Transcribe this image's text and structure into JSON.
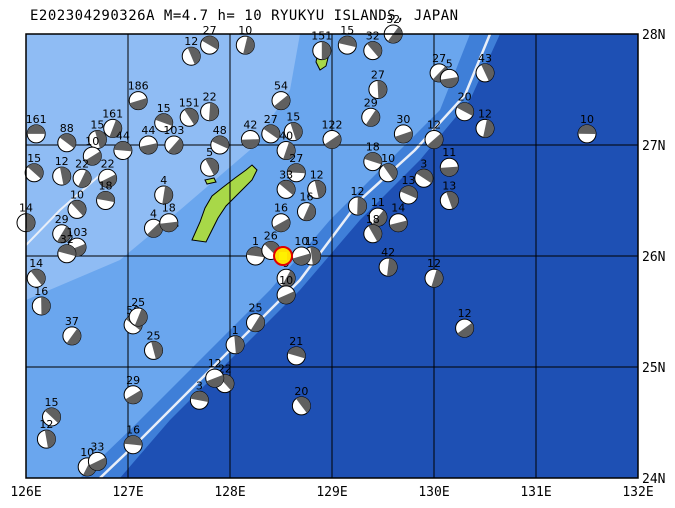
{
  "title": "E202304290326A  M=4.7  h= 10  RYUKYU ISLANDS, JAPAN",
  "map": {
    "lon_range": [
      126,
      132
    ],
    "lat_range": [
      24,
      28
    ],
    "lon_ticks": [
      "126E",
      "127E",
      "128E",
      "129E",
      "130E",
      "131E",
      "132E"
    ],
    "lat_ticks": [
      "24N",
      "25N",
      "26N",
      "27N",
      "28N"
    ],
    "colors": {
      "deep_sea": "#1e50b4",
      "mid_sea": "#3f7fd8",
      "shelf_sea": "#6aa6ee",
      "land": "#a8d848",
      "grid": "#000000",
      "trench": "#e8eef8",
      "mechanism_dark": "#606060",
      "mechanism_light": "#ffffff",
      "target_fill": "#ffe000",
      "target_ring": "#e00000"
    },
    "target_event": {
      "lon": 128.52,
      "lat": 26.0
    }
  },
  "mechanisms": [
    {
      "lon": 126.1,
      "lat": 27.1,
      "label": "161"
    },
    {
      "lon": 126.4,
      "lat": 27.02,
      "label": "88"
    },
    {
      "lon": 126.7,
      "lat": 27.05,
      "label": "15"
    },
    {
      "lon": 126.85,
      "lat": 27.15,
      "label": "161"
    },
    {
      "lon": 126.65,
      "lat": 26.9,
      "label": "10"
    },
    {
      "lon": 126.95,
      "lat": 26.95,
      "label": "44"
    },
    {
      "lon": 126.08,
      "lat": 26.75,
      "label": "15"
    },
    {
      "lon": 126.35,
      "lat": 26.72,
      "label": "12"
    },
    {
      "lon": 126.55,
      "lat": 26.7,
      "label": "22"
    },
    {
      "lon": 126.8,
      "lat": 26.7,
      "label": "22"
    },
    {
      "lon": 126.78,
      "lat": 26.5,
      "label": "18"
    },
    {
      "lon": 126.5,
      "lat": 26.42,
      "label": "10"
    },
    {
      "lon": 126.0,
      "lat": 26.3,
      "label": "14"
    },
    {
      "lon": 126.35,
      "lat": 26.2,
      "label": "29"
    },
    {
      "lon": 126.5,
      "lat": 26.08,
      "label": "103"
    },
    {
      "lon": 126.4,
      "lat": 26.02,
      "label": "32"
    },
    {
      "lon": 126.1,
      "lat": 25.8,
      "label": "14"
    },
    {
      "lon": 126.15,
      "lat": 25.55,
      "label": "16"
    },
    {
      "lon": 126.45,
      "lat": 25.28,
      "label": "37"
    },
    {
      "lon": 127.1,
      "lat": 27.4,
      "label": "186"
    },
    {
      "lon": 127.35,
      "lat": 27.2,
      "label": "15"
    },
    {
      "lon": 127.6,
      "lat": 27.25,
      "label": "151"
    },
    {
      "lon": 127.8,
      "lat": 27.3,
      "label": "22"
    },
    {
      "lon": 127.45,
      "lat": 27.0,
      "label": "103"
    },
    {
      "lon": 127.2,
      "lat": 27.0,
      "label": "44"
    },
    {
      "lon": 127.9,
      "lat": 27.0,
      "label": "48"
    },
    {
      "lon": 127.8,
      "lat": 26.8,
      "label": "5"
    },
    {
      "lon": 127.35,
      "lat": 26.55,
      "label": "4"
    },
    {
      "lon": 127.25,
      "lat": 26.25,
      "label": "4"
    },
    {
      "lon": 127.4,
      "lat": 26.3,
      "label": "18"
    },
    {
      "lon": 127.8,
      "lat": 27.9,
      "label": "27"
    },
    {
      "lon": 127.62,
      "lat": 27.8,
      "label": "12"
    },
    {
      "lon": 128.15,
      "lat": 27.9,
      "label": "10"
    },
    {
      "lon": 128.5,
      "lat": 27.4,
      "label": "54"
    },
    {
      "lon": 128.2,
      "lat": 27.05,
      "label": "42"
    },
    {
      "lon": 128.4,
      "lat": 27.1,
      "label": "27"
    },
    {
      "lon": 128.62,
      "lat": 27.12,
      "label": "15"
    },
    {
      "lon": 128.55,
      "lat": 26.95,
      "label": "40"
    },
    {
      "lon": 129.0,
      "lat": 27.05,
      "label": "122"
    },
    {
      "lon": 128.65,
      "lat": 26.75,
      "label": "27"
    },
    {
      "lon": 128.55,
      "lat": 26.6,
      "label": "33"
    },
    {
      "lon": 128.85,
      "lat": 26.6,
      "label": "12"
    },
    {
      "lon": 128.75,
      "lat": 26.4,
      "label": "16"
    },
    {
      "lon": 128.5,
      "lat": 26.3,
      "label": "16"
    },
    {
      "lon": 128.25,
      "lat": 26.0,
      "label": "1"
    },
    {
      "lon": 128.4,
      "lat": 26.05,
      "label": "26"
    },
    {
      "lon": 128.8,
      "lat": 26.0,
      "label": "15"
    },
    {
      "lon": 128.55,
      "lat": 25.8,
      "label": "9"
    },
    {
      "lon": 128.55,
      "lat": 25.65,
      "label": "10"
    },
    {
      "lon": 129.15,
      "lat": 27.9,
      "label": "15"
    },
    {
      "lon": 129.4,
      "lat": 27.85,
      "label": "32"
    },
    {
      "lon": 129.45,
      "lat": 27.5,
      "label": "27"
    },
    {
      "lon": 129.38,
      "lat": 27.25,
      "label": "29"
    },
    {
      "lon": 129.7,
      "lat": 27.1,
      "label": "30"
    },
    {
      "lon": 129.4,
      "lat": 26.85,
      "label": "18"
    },
    {
      "lon": 129.55,
      "lat": 26.75,
      "label": "10"
    },
    {
      "lon": 129.25,
      "lat": 26.45,
      "label": "12"
    },
    {
      "lon": 129.45,
      "lat": 26.35,
      "label": "11"
    },
    {
      "lon": 129.65,
      "lat": 26.3,
      "label": "14"
    },
    {
      "lon": 129.75,
      "lat": 26.55,
      "label": "13"
    },
    {
      "lon": 129.4,
      "lat": 26.2,
      "label": "18"
    },
    {
      "lon": 129.55,
      "lat": 25.9,
      "label": "42"
    },
    {
      "lon": 130.05,
      "lat": 27.65,
      "label": "27"
    },
    {
      "lon": 130.15,
      "lat": 27.6,
      "label": "5"
    },
    {
      "lon": 130.3,
      "lat": 27.3,
      "label": "20"
    },
    {
      "lon": 130.5,
      "lat": 27.65,
      "label": "43"
    },
    {
      "lon": 130.5,
      "lat": 27.15,
      "label": "12"
    },
    {
      "lon": 130.0,
      "lat": 27.05,
      "label": "12"
    },
    {
      "lon": 130.15,
      "lat": 26.8,
      "label": "11"
    },
    {
      "lon": 129.9,
      "lat": 26.7,
      "label": "3"
    },
    {
      "lon": 130.15,
      "lat": 26.5,
      "label": "13"
    },
    {
      "lon": 130.0,
      "lat": 25.8,
      "label": "12"
    },
    {
      "lon": 130.3,
      "lat": 25.35,
      "label": "12"
    },
    {
      "lon": 131.5,
      "lat": 27.1,
      "label": "10"
    },
    {
      "lon": 127.05,
      "lat": 25.38,
      "label": "50"
    },
    {
      "lon": 127.25,
      "lat": 25.15,
      "label": "25"
    },
    {
      "lon": 127.1,
      "lat": 25.45,
      "label": "25"
    },
    {
      "lon": 127.05,
      "lat": 24.75,
      "label": "29"
    },
    {
      "lon": 127.05,
      "lat": 24.3,
      "label": "16"
    },
    {
      "lon": 126.25,
      "lat": 24.55,
      "label": "15"
    },
    {
      "lon": 126.2,
      "lat": 24.35,
      "label": "12"
    },
    {
      "lon": 126.6,
      "lat": 24.1,
      "label": "10"
    },
    {
      "lon": 126.7,
      "lat": 24.15,
      "label": "33"
    },
    {
      "lon": 127.7,
      "lat": 24.7,
      "label": "3"
    },
    {
      "lon": 127.95,
      "lat": 24.85,
      "label": "22"
    },
    {
      "lon": 128.05,
      "lat": 25.2,
      "label": "1"
    },
    {
      "lon": 128.25,
      "lat": 25.4,
      "label": "25"
    },
    {
      "lon": 127.85,
      "lat": 24.9,
      "label": "12"
    },
    {
      "lon": 128.65,
      "lat": 25.1,
      "label": "21"
    },
    {
      "lon": 128.7,
      "lat": 24.65,
      "label": "20"
    },
    {
      "lon": 128.9,
      "lat": 27.85,
      "label": "151"
    },
    {
      "lon": 129.6,
      "lat": 28.0,
      "label": "32"
    },
    {
      "lon": 128.7,
      "lat": 26.0,
      "label": "10"
    }
  ]
}
